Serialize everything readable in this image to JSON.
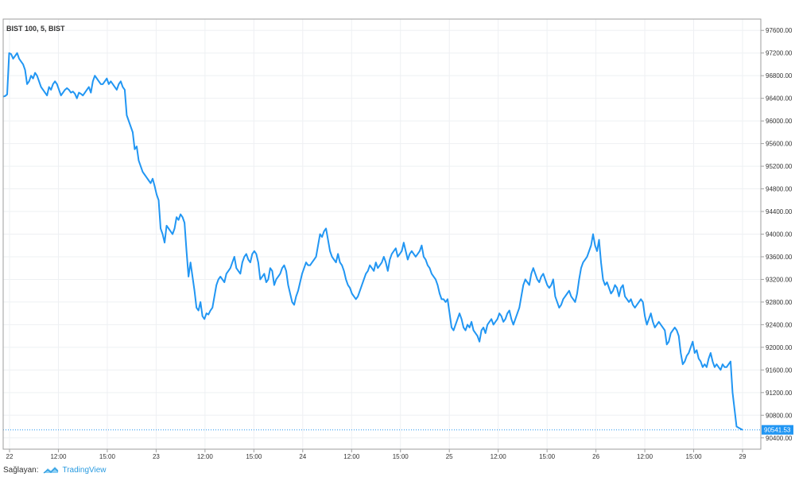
{
  "chart_data": {
    "type": "line",
    "title": "BIST 100, 5, BIST",
    "ylim": [
      90200,
      97800
    ],
    "y_ticks": [
      "90400.00",
      "90800.00",
      "91200.00",
      "91600.00",
      "92000.00",
      "92400.00",
      "92800.00",
      "93200.00",
      "93600.00",
      "94000.00",
      "94400.00",
      "94800.00",
      "95200.00",
      "95600.00",
      "96000.00",
      "96400.00",
      "96800.00",
      "97200.00",
      "97600.00"
    ],
    "x_ticks": [
      "22",
      "12:00",
      "15:00",
      "23",
      "12:00",
      "15:00",
      "24",
      "12:00",
      "15:00",
      "25",
      "12:00",
      "15:00",
      "26",
      "12:00",
      "15:00",
      "29"
    ],
    "last_value": "90541.53",
    "color": "#2196f3",
    "grid": true,
    "series": [
      {
        "values": [
          96430,
          96440,
          96470,
          97200,
          97180,
          97100,
          97150,
          97200,
          97100,
          97050,
          97000,
          96900,
          96650,
          96700,
          96800,
          96750,
          96850,
          96800,
          96700,
          96600,
          96550,
          96500,
          96450,
          96600,
          96550,
          96650,
          96700,
          96650,
          96550,
          96450,
          96500,
          96550,
          96580,
          96550,
          96500,
          96520,
          96480,
          96400,
          96500,
          96480,
          96450,
          96500,
          96550,
          96600,
          96500,
          96700,
          96800,
          96750,
          96700,
          96650,
          96650,
          96700,
          96750,
          96650,
          96700,
          96650,
          96600,
          96550,
          96650,
          96700,
          96600,
          96550,
          96100,
          96000,
          95900,
          95800,
          95500,
          95550,
          95300,
          95200,
          95100,
          95050,
          95000,
          94950,
          94900,
          94980,
          94850,
          94700,
          94600,
          94100,
          94000,
          93850,
          94150,
          94100,
          94050,
          94000,
          94100,
          94300,
          94250,
          94350,
          94300,
          94200,
          93700,
          93250,
          93500,
          93250,
          93000,
          92700,
          92650,
          92800,
          92550,
          92500,
          92600,
          92580,
          92650,
          92700,
          92900,
          93100,
          93200,
          93250,
          93200,
          93150,
          93300,
          93350,
          93400,
          93500,
          93600,
          93400,
          93350,
          93300,
          93500,
          93600,
          93650,
          93550,
          93500,
          93650,
          93700,
          93650,
          93500,
          93200,
          93250,
          93300,
          93150,
          93200,
          93400,
          93350,
          93100,
          93200,
          93250,
          93300,
          93400,
          93450,
          93350,
          93100,
          92950,
          92800,
          92750,
          92900,
          93000,
          93150,
          93300,
          93400,
          93500,
          93450,
          93450,
          93500,
          93550,
          93600,
          93800,
          94000,
          93950,
          94050,
          94100,
          93900,
          93700,
          93600,
          93550,
          93500,
          93650,
          93500,
          93450,
          93350,
          93200,
          93100,
          93050,
          92950,
          92900,
          92850,
          92900,
          93000,
          93100,
          93200,
          93300,
          93350,
          93450,
          93400,
          93350,
          93500,
          93400,
          93450,
          93500,
          93600,
          93500,
          93350,
          93550,
          93650,
          93700,
          93750,
          93600,
          93650,
          93700,
          93850,
          93700,
          93550,
          93650,
          93700,
          93650,
          93600,
          93650,
          93700,
          93800,
          93600,
          93550,
          93450,
          93400,
          93300,
          93250,
          93200,
          93100,
          92950,
          92850,
          92850,
          92800,
          92850,
          92600,
          92350,
          92300,
          92400,
          92500,
          92600,
          92500,
          92350,
          92300,
          92400,
          92350,
          92450,
          92300,
          92250,
          92200,
          92100,
          92300,
          92350,
          92250,
          92400,
          92450,
          92500,
          92400,
          92450,
          92500,
          92600,
          92550,
          92450,
          92500,
          92600,
          92650,
          92500,
          92400,
          92500,
          92600,
          92700,
          92900,
          93100,
          93200,
          93150,
          93100,
          93300,
          93400,
          93300,
          93200,
          93150,
          93250,
          93300,
          93200,
          93100,
          93050,
          93100,
          93200,
          92900,
          92800,
          92700,
          92750,
          92850,
          92900,
          92950,
          93000,
          92900,
          92850,
          92800,
          92950,
          93200,
          93400,
          93500,
          93550,
          93600,
          93700,
          93800,
          94000,
          93800,
          93700,
          93900,
          93500,
          93200,
          93100,
          93150,
          93050,
          92950,
          93000,
          93100,
          93050,
          92900,
          93050,
          93100,
          92900,
          92850,
          92800,
          92850,
          92750,
          92700,
          92750,
          92800,
          92850,
          92800,
          92550,
          92400,
          92500,
          92600,
          92450,
          92350,
          92400,
          92450,
          92400,
          92350,
          92300,
          92050,
          92100,
          92250,
          92300,
          92350,
          92300,
          92200,
          91900,
          91700,
          91750,
          91850,
          91900,
          92000,
          92100,
          91900,
          91950,
          91800,
          91750,
          91650,
          91700,
          91650,
          91800,
          91900,
          91750,
          91650,
          91700,
          91650,
          91600,
          91700,
          91650,
          91650,
          91700,
          91750,
          91200,
          90900,
          90600,
          90580,
          90560,
          90541.53
        ]
      }
    ]
  },
  "footer": {
    "source_label": "Sağlayan:",
    "brand_name": "TradingView"
  }
}
